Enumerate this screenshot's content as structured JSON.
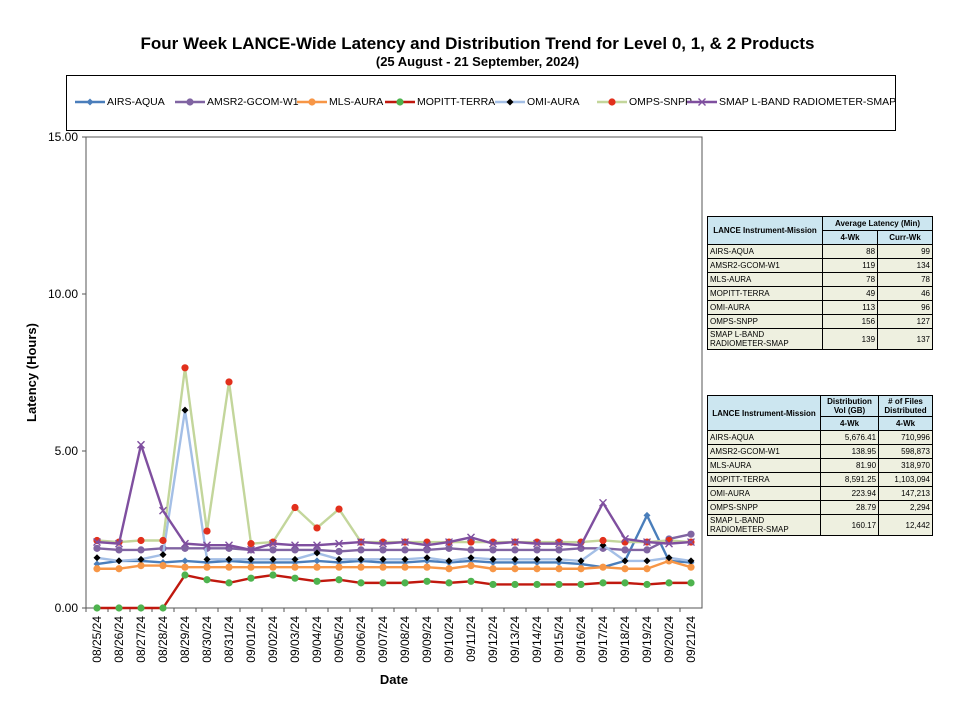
{
  "title": "Four Week LANCE-Wide Latency and Distribution Trend for Level 0, 1, & 2 Products",
  "subtitle": "(25  August   - 21  September,  2024)",
  "chart_data": {
    "type": "line",
    "xlabel": "Date",
    "ylabel": "Latency (Hours)",
    "ylim": [
      0,
      15
    ],
    "yticks": [
      "0.00",
      "5.00",
      "10.00",
      "15.00"
    ],
    "grid": false,
    "legend_position": "top",
    "categories": [
      "08/25/24",
      "08/26/24",
      "08/27/24",
      "08/28/24",
      "08/29/24",
      "08/30/24",
      "08/31/24",
      "09/01/24",
      "09/02/24",
      "09/03/24",
      "09/04/24",
      "09/05/24",
      "09/06/24",
      "09/07/24",
      "09/08/24",
      "09/09/24",
      "09/10/24",
      "09/11/24",
      "09/12/24",
      "09/13/24",
      "09/14/24",
      "09/15/24",
      "09/16/24",
      "09/17/24",
      "09/18/24",
      "09/19/24",
      "09/20/24",
      "09/21/24"
    ],
    "series": [
      {
        "name": "AIRS-AQUA",
        "color": "#4a7ebb",
        "marker": "diamond",
        "values": [
          1.4,
          1.5,
          1.5,
          1.45,
          1.5,
          1.45,
          1.5,
          1.45,
          1.45,
          1.45,
          1.5,
          1.45,
          1.5,
          1.45,
          1.45,
          1.5,
          1.45,
          1.5,
          1.45,
          1.45,
          1.45,
          1.45,
          1.4,
          1.3,
          1.5,
          2.95,
          1.5,
          1.45
        ]
      },
      {
        "name": "AMSR2-GCOM-W1",
        "color": "#8064a2",
        "marker": "circle",
        "values": [
          1.9,
          1.85,
          1.85,
          1.9,
          1.9,
          1.9,
          1.9,
          1.85,
          1.85,
          1.85,
          1.85,
          1.8,
          1.85,
          1.85,
          1.85,
          1.85,
          1.9,
          1.85,
          1.85,
          1.85,
          1.85,
          1.85,
          1.9,
          1.9,
          1.85,
          1.85,
          2.2,
          2.35
        ]
      },
      {
        "name": "MLS-AURA",
        "color": "#f79646",
        "marker": "circle",
        "values": [
          1.25,
          1.25,
          1.35,
          1.35,
          1.3,
          1.3,
          1.3,
          1.3,
          1.3,
          1.3,
          1.3,
          1.3,
          1.3,
          1.3,
          1.3,
          1.3,
          1.25,
          1.35,
          1.25,
          1.25,
          1.25,
          1.25,
          1.25,
          1.3,
          1.25,
          1.25,
          1.5,
          1.3
        ]
      },
      {
        "name": "MOPITT-TERRA",
        "color": "#c0180e",
        "marker": "circle",
        "marker_color": "#4eb34e",
        "values": [
          0.0,
          0.0,
          0.0,
          0.0,
          1.05,
          0.9,
          0.8,
          0.95,
          1.05,
          0.95,
          0.85,
          0.9,
          0.8,
          0.8,
          0.8,
          0.85,
          0.8,
          0.85,
          0.75,
          0.75,
          0.75,
          0.75,
          0.75,
          0.8,
          0.8,
          0.75,
          0.8,
          0.8
        ]
      },
      {
        "name": "OMI-AURA",
        "color": "#a4bfe6",
        "marker": "diamond",
        "marker_color": "#000000",
        "values": [
          1.6,
          1.5,
          1.55,
          1.7,
          6.3,
          1.55,
          1.55,
          1.55,
          1.55,
          1.55,
          1.75,
          1.55,
          1.55,
          1.55,
          1.55,
          1.6,
          1.5,
          1.6,
          1.55,
          1.55,
          1.55,
          1.55,
          1.5,
          2.0,
          1.5,
          1.5,
          1.6,
          1.5
        ]
      },
      {
        "name": "OMPS-SNPP",
        "color": "#c3d69b",
        "marker": "circle",
        "marker_color": "#e2301c",
        "values": [
          2.15,
          2.1,
          2.15,
          2.15,
          7.65,
          2.45,
          7.2,
          2.05,
          2.1,
          3.2,
          2.55,
          3.15,
          2.1,
          2.1,
          2.1,
          2.1,
          2.1,
          2.1,
          2.1,
          2.1,
          2.1,
          2.1,
          2.1,
          2.15,
          2.1,
          2.1,
          2.15,
          2.1
        ]
      },
      {
        "name": "SMAP L-BAND RADIOMETER-SMAP",
        "color": "#7f4f9f",
        "marker": "x",
        "values": [
          2.1,
          2.05,
          5.2,
          3.1,
          2.05,
          2.0,
          2.0,
          1.85,
          2.05,
          2.0,
          2.0,
          2.05,
          2.1,
          2.05,
          2.1,
          2.0,
          2.1,
          2.25,
          2.05,
          2.1,
          2.05,
          2.05,
          2.0,
          3.35,
          2.2,
          2.1,
          2.05,
          2.1
        ]
      }
    ]
  },
  "latency_table": {
    "col1_header": "LANCE Instrument-Mission",
    "col2_header": "Average Latency (Min)",
    "sub_4wk": "4-Wk",
    "sub_curr": "Curr-Wk",
    "rows": [
      {
        "name": "AIRS-AQUA",
        "wk4": "88",
        "curr": "99"
      },
      {
        "name": "AMSR2-GCOM-W1",
        "wk4": "119",
        "curr": "134"
      },
      {
        "name": "MLS-AURA",
        "wk4": "78",
        "curr": "78"
      },
      {
        "name": "MOPITT-TERRA",
        "wk4": "49",
        "curr": "46"
      },
      {
        "name": "OMI-AURA",
        "wk4": "113",
        "curr": "96"
      },
      {
        "name": "OMPS-SNPP",
        "wk4": "156",
        "curr": "127"
      },
      {
        "name": "SMAP L-BAND RADIOMETER-SMAP",
        "wk4": "139",
        "curr": "137"
      }
    ]
  },
  "distribution_table": {
    "col1_header": "LANCE Instrument-Mission",
    "col2_header": "Distribution Vol (GB)",
    "col3_header": "# of Files Distributed",
    "sub_4wk_a": "4-Wk",
    "sub_4wk_b": "4-Wk",
    "rows": [
      {
        "name": "AIRS-AQUA",
        "vol": "5,676.41",
        "files": "710,996"
      },
      {
        "name": "AMSR2-GCOM-W1",
        "vol": "138.95",
        "files": "598,873"
      },
      {
        "name": "MLS-AURA",
        "vol": "81.90",
        "files": "318,970"
      },
      {
        "name": "MOPITT-TERRA",
        "vol": "8,591.25",
        "files": "1,103,094"
      },
      {
        "name": "OMI-AURA",
        "vol": "223.94",
        "files": "147,213"
      },
      {
        "name": "OMPS-SNPP",
        "vol": "28.79",
        "files": "2,294"
      },
      {
        "name": "SMAP L-BAND RADIOMETER-SMAP",
        "vol": "160.17",
        "files": "12,442"
      }
    ]
  }
}
